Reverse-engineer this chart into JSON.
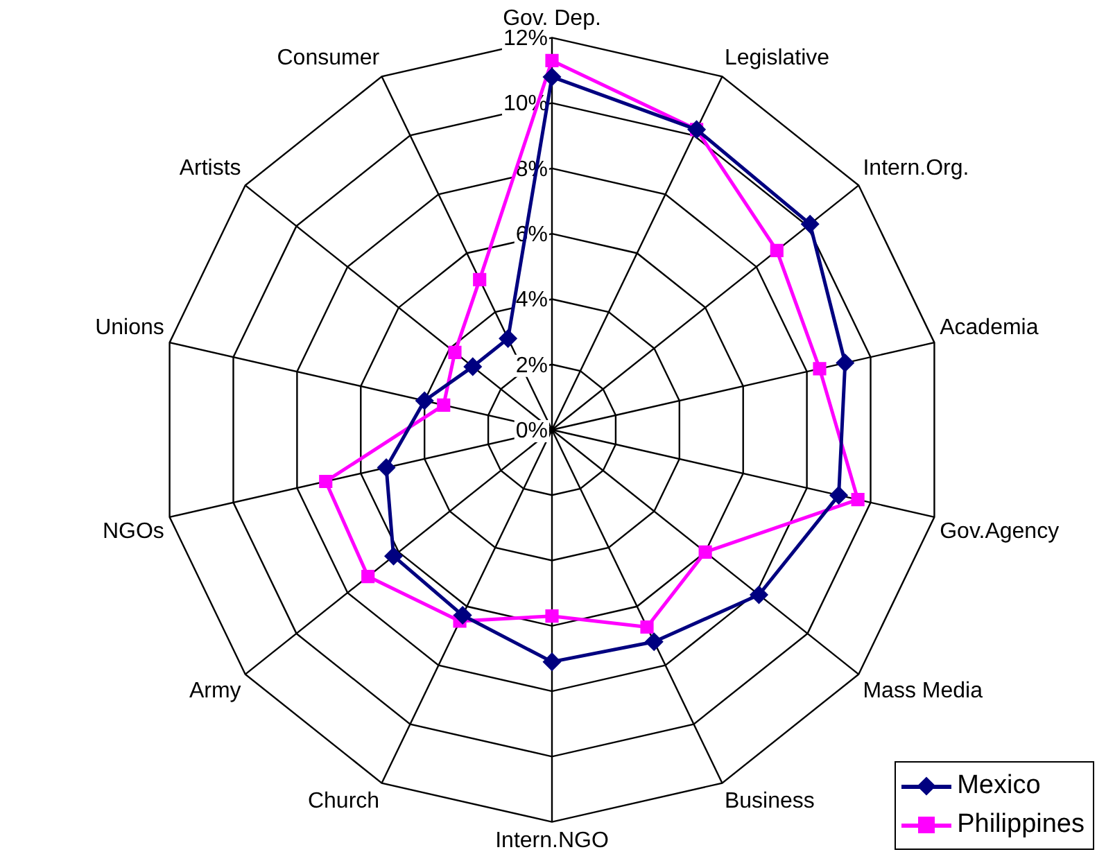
{
  "chart_data": {
    "type": "radar",
    "categories": [
      "Gov. Dep.",
      "Legislative",
      "Intern.Org.",
      "Academia",
      "Gov.Agency",
      "Mass Media",
      "Business",
      "Intern.NGO",
      "Church",
      "Army",
      "NGOs",
      "Unions",
      "Artists",
      "Consumer"
    ],
    "series": [
      {
        "name": "Mexico",
        "color": "#000080",
        "marker": "diamond",
        "values": [
          10.8,
          10.2,
          10.1,
          9.2,
          9.0,
          8.1,
          7.2,
          7.1,
          6.3,
          6.2,
          5.2,
          4.0,
          3.1,
          3.1
        ]
      },
      {
        "name": "Philippines",
        "color": "#ff00ff",
        "marker": "square",
        "values": [
          11.3,
          10.2,
          8.8,
          8.4,
          9.6,
          6.0,
          6.7,
          5.7,
          6.5,
          7.2,
          7.1,
          3.4,
          3.8,
          5.1
        ]
      }
    ],
    "ylim": [
      0,
      12
    ],
    "yticks": [
      {
        "value": 0,
        "label": "0%"
      },
      {
        "value": 2,
        "label": "2%"
      },
      {
        "value": 4,
        "label": "4%"
      },
      {
        "value": 6,
        "label": "6%"
      },
      {
        "value": 8,
        "label": "8%"
      },
      {
        "value": 10,
        "label": "10%"
      },
      {
        "value": 12,
        "label": "12%"
      }
    ],
    "grid": true,
    "legend": "bottom right"
  }
}
